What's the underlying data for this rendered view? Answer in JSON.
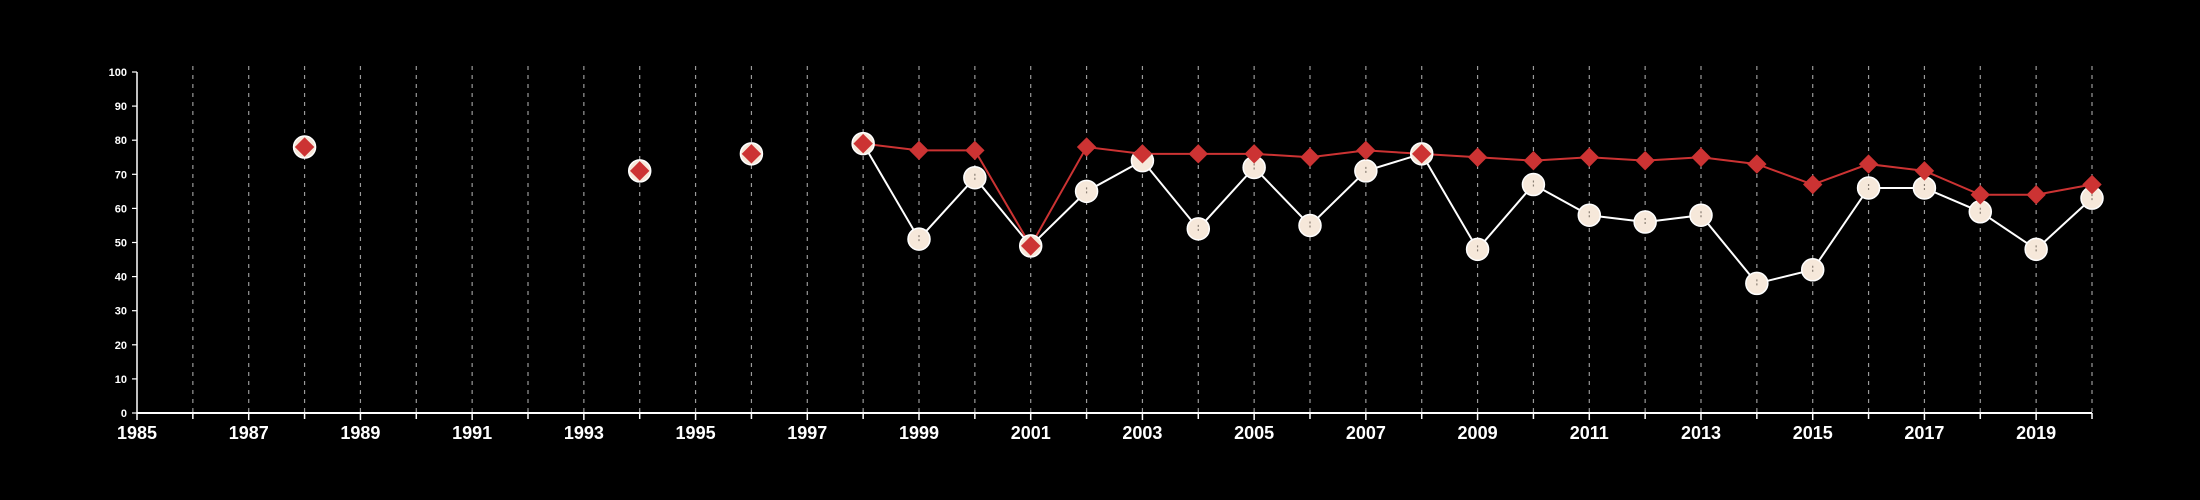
{
  "chart_data": {
    "type": "line",
    "xlim": [
      1985,
      2020
    ],
    "ylim": [
      0,
      100
    ],
    "y_ticks": [
      0,
      10,
      20,
      30,
      40,
      50,
      60,
      70,
      80,
      90,
      100
    ],
    "x_tick_labels": [
      1985,
      1987,
      1989,
      1991,
      1993,
      1995,
      1997,
      1999,
      2001,
      2003,
      2005,
      2007,
      2009,
      2011,
      2013,
      2015,
      2017,
      2019
    ],
    "x_minor_ticks": [
      1986,
      1988,
      1990,
      1992,
      1994,
      1996,
      1998,
      2000,
      2002,
      2004,
      2006,
      2008,
      2010,
      2012,
      2014,
      2016,
      2018,
      2020
    ],
    "grid": {
      "vertical_dashed": true,
      "horizontal": false
    },
    "background": "#000000",
    "series": [
      {
        "marker": "circle",
        "color": "#f6e8da",
        "line_color": "#ffffff",
        "points": [
          {
            "x": 1998,
            "y": 79
          },
          {
            "x": 1999,
            "y": 51
          },
          {
            "x": 2000,
            "y": 69
          },
          {
            "x": 2001,
            "y": 49
          },
          {
            "x": 2002,
            "y": 65
          },
          {
            "x": 2003,
            "y": 74
          },
          {
            "x": 2004,
            "y": 54
          },
          {
            "x": 2005,
            "y": 72
          },
          {
            "x": 2006,
            "y": 55
          },
          {
            "x": 2007,
            "y": 71
          },
          {
            "x": 2008,
            "y": 76
          },
          {
            "x": 2009,
            "y": 48
          },
          {
            "x": 2010,
            "y": 67
          },
          {
            "x": 2011,
            "y": 58
          },
          {
            "x": 2012,
            "y": 56
          },
          {
            "x": 2013,
            "y": 58
          },
          {
            "x": 2014,
            "y": 38
          },
          {
            "x": 2015,
            "y": 42
          },
          {
            "x": 2016,
            "y": 66
          },
          {
            "x": 2017,
            "y": 66
          },
          {
            "x": 2018,
            "y": 59
          },
          {
            "x": 2019,
            "y": 48
          },
          {
            "x": 2020,
            "y": 63
          }
        ],
        "standalone_points": [
          {
            "x": 1988,
            "y": 78
          },
          {
            "x": 1994,
            "y": 71
          },
          {
            "x": 1996,
            "y": 76
          }
        ]
      },
      {
        "marker": "diamond",
        "color": "#cc3333",
        "line_color": "#cc3333",
        "points": [
          {
            "x": 1998,
            "y": 79
          },
          {
            "x": 1999,
            "y": 77
          },
          {
            "x": 2000,
            "y": 77
          },
          {
            "x": 2001,
            "y": 49
          },
          {
            "x": 2002,
            "y": 78
          },
          {
            "x": 2003,
            "y": 76
          },
          {
            "x": 2004,
            "y": 76
          },
          {
            "x": 2005,
            "y": 76
          },
          {
            "x": 2006,
            "y": 75
          },
          {
            "x": 2007,
            "y": 77
          },
          {
            "x": 2008,
            "y": 76
          },
          {
            "x": 2009,
            "y": 75
          },
          {
            "x": 2010,
            "y": 74
          },
          {
            "x": 2011,
            "y": 75
          },
          {
            "x": 2012,
            "y": 74
          },
          {
            "x": 2013,
            "y": 75
          },
          {
            "x": 2014,
            "y": 73
          },
          {
            "x": 2015,
            "y": 67
          },
          {
            "x": 2016,
            "y": 73
          },
          {
            "x": 2017,
            "y": 71
          },
          {
            "x": 2018,
            "y": 64
          },
          {
            "x": 2019,
            "y": 64
          },
          {
            "x": 2020,
            "y": 67
          }
        ],
        "standalone_points": [
          {
            "x": 1988,
            "y": 78
          },
          {
            "x": 1994,
            "y": 71
          },
          {
            "x": 1996,
            "y": 76
          }
        ]
      }
    ]
  }
}
